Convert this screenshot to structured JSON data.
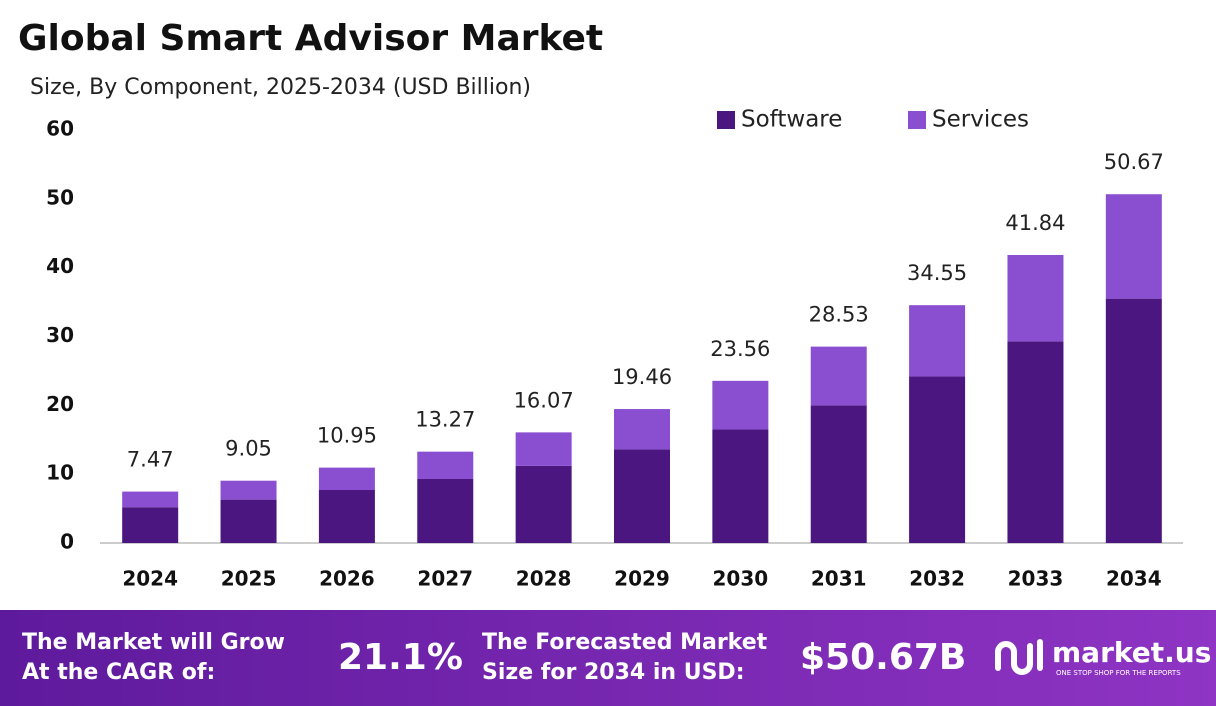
{
  "chart_data": {
    "type": "stacked_bar",
    "title": "Global Smart Advisor Market",
    "subtitle": "Size, By Component, 2025-2034 (USD Billion)",
    "categories": [
      "2024",
      "2025",
      "2026",
      "2027",
      "2028",
      "2029",
      "2030",
      "2031",
      "2032",
      "2033",
      "2034"
    ],
    "series": [
      {
        "name": "Software",
        "color": "#4b167f",
        "values": [
          5.2,
          6.3,
          7.7,
          9.3,
          11.2,
          13.6,
          16.5,
          20.0,
          24.2,
          29.3,
          35.5
        ]
      },
      {
        "name": "Services",
        "color": "#8a4fd0",
        "values": [
          2.27,
          2.75,
          3.25,
          3.97,
          4.87,
          5.86,
          7.06,
          8.53,
          10.35,
          12.54,
          15.17
        ]
      }
    ],
    "totals": [
      7.47,
      9.05,
      10.95,
      13.27,
      16.07,
      19.46,
      23.56,
      28.53,
      34.55,
      41.84,
      50.67
    ],
    "ylim": [
      0,
      60
    ],
    "yticks": [
      0,
      10,
      20,
      30,
      40,
      50,
      60
    ],
    "legend": "top-right"
  },
  "footer": {
    "cagr_label": [
      "The Market will Grow",
      "At the CAGR of:"
    ],
    "cagr_value": "21.1%",
    "forecast_label": [
      "The Forecasted Market",
      "Size for 2034 in USD:"
    ],
    "forecast_value": "$50.67B",
    "brand": "market.us",
    "tagline": "ONE STOP SHOP FOR THE REPORTS"
  }
}
